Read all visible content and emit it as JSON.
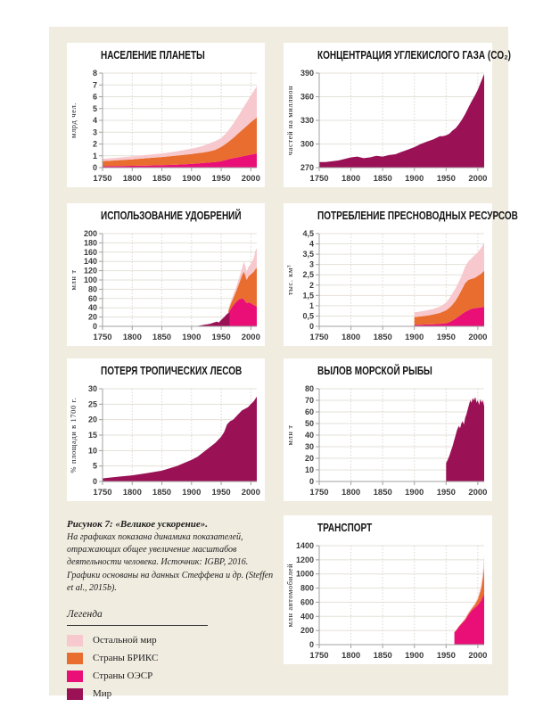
{
  "palette": {
    "rest": "#f7c8ce",
    "brics": "#e96d2f",
    "oecd": "#e90f77",
    "world": "#9b1156"
  },
  "figure_bg": "#f0ece0",
  "caption": {
    "title": "Рисунок 7: «Великое ускорение».",
    "body": "На графиках показана динамика показателей, отражающих общее увеличение масштабов деятельности человека. Источник: IGBP, 2016. Графики основаны на данных Стеффена и др. (Steffen et al., 2015b)."
  },
  "legend": {
    "title": "Легенда",
    "items": [
      {
        "label": "Остальной мир",
        "color_key": "rest"
      },
      {
        "label": "Страны БРИКС",
        "color_key": "brics"
      },
      {
        "label": "Страны ОЭСР",
        "color_key": "oecd"
      },
      {
        "label": "Мир",
        "color_key": "world"
      }
    ]
  },
  "chart_data": [
    {
      "type": "area",
      "stacked": true,
      "title": "НАСЕЛЕНИЕ ПЛАНЕТЫ",
      "ylabel": "млрд чел.",
      "xlim": [
        1750,
        2010
      ],
      "ylim": [
        0,
        8
      ],
      "xticks": [
        1750,
        1800,
        1850,
        1900,
        1950,
        2000
      ],
      "yticks": [
        0,
        1,
        2,
        3,
        4,
        5,
        6,
        7,
        8
      ],
      "series": [
        {
          "name": "Страны ОЭСР",
          "color_key": "oecd",
          "stack": true,
          "years": [
            1750,
            1775,
            1800,
            1825,
            1850,
            1875,
            1900,
            1910,
            1920,
            1930,
            1940,
            1950,
            1960,
            1970,
            1980,
            1990,
            2000,
            2010
          ],
          "values": [
            0.12,
            0.13,
            0.15,
            0.17,
            0.2,
            0.25,
            0.31,
            0.35,
            0.39,
            0.44,
            0.47,
            0.55,
            0.68,
            0.8,
            0.9,
            1.0,
            1.1,
            1.2
          ]
        },
        {
          "name": "Страны БРИКС",
          "color_key": "brics",
          "stack": true,
          "years": [
            1750,
            1775,
            1800,
            1825,
            1850,
            1875,
            1900,
            1910,
            1920,
            1930,
            1940,
            1950,
            1960,
            1970,
            1980,
            1990,
            2000,
            2010
          ],
          "values": [
            0.43,
            0.49,
            0.55,
            0.63,
            0.7,
            0.77,
            0.84,
            0.87,
            0.89,
            0.94,
            1.03,
            1.2,
            1.42,
            1.7,
            2.05,
            2.4,
            2.75,
            3.05
          ]
        },
        {
          "name": "Остальной мир",
          "color_key": "rest",
          "stack": true,
          "years": [
            1750,
            1775,
            1800,
            1825,
            1850,
            1875,
            1900,
            1910,
            1920,
            1930,
            1940,
            1950,
            1960,
            1970,
            1980,
            1990,
            2000,
            2010
          ],
          "values": [
            0.2,
            0.22,
            0.25,
            0.27,
            0.3,
            0.36,
            0.45,
            0.5,
            0.57,
            0.67,
            0.75,
            0.75,
            0.9,
            1.2,
            1.5,
            1.9,
            2.25,
            2.65
          ]
        }
      ]
    },
    {
      "type": "area",
      "stacked": false,
      "title": "КОНЦЕНТРАЦИЯ УГЛЕКИСЛОГО ГАЗА  (CO₂)",
      "ylabel": "частей на миллион",
      "xlim": [
        1750,
        2010
      ],
      "ylim": [
        270,
        390
      ],
      "xticks": [
        1750,
        1800,
        1850,
        1900,
        1950,
        2000
      ],
      "yticks": [
        270,
        300,
        330,
        360,
        390
      ],
      "series": [
        {
          "name": "Мир",
          "color_key": "world",
          "stack": false,
          "years": [
            1750,
            1760,
            1770,
            1780,
            1790,
            1800,
            1810,
            1820,
            1830,
            1840,
            1850,
            1860,
            1870,
            1880,
            1890,
            1900,
            1910,
            1920,
            1930,
            1940,
            1945,
            1950,
            1955,
            1960,
            1965,
            1970,
            1975,
            1980,
            1985,
            1990,
            1995,
            2000,
            2005,
            2010
          ],
          "values": [
            277,
            277,
            278,
            279,
            281,
            283,
            284,
            282,
            283,
            285,
            284,
            286,
            287,
            290,
            293,
            296,
            300,
            303,
            306,
            310,
            310,
            311,
            313,
            317,
            320,
            325,
            331,
            338,
            346,
            354,
            361,
            369,
            379,
            389
          ]
        }
      ]
    },
    {
      "type": "area",
      "stacked": true,
      "title": "ИСПОЛЬЗОВАНИЕ УДОБРЕНИЙ",
      "ylabel": "млн т",
      "xlim": [
        1750,
        2010
      ],
      "ylim": [
        0,
        200
      ],
      "xticks": [
        1750,
        1800,
        1850,
        1900,
        1950,
        2000
      ],
      "yticks": [
        0,
        20,
        40,
        60,
        80,
        100,
        120,
        140,
        160,
        180,
        200
      ],
      "series": [
        {
          "name": "Страны ОЭСР",
          "color_key": "oecd",
          "stack": true,
          "years": [
            1962,
            1965,
            1970,
            1975,
            1980,
            1985,
            1988,
            1990,
            1993,
            1996,
            2000,
            2005,
            2008,
            2010
          ],
          "values": [
            28,
            35,
            45,
            52,
            58,
            60,
            58,
            55,
            50,
            52,
            50,
            46,
            44,
            42
          ]
        },
        {
          "name": "Страны БРИКС",
          "color_key": "brics",
          "stack": true,
          "years": [
            1962,
            1965,
            1970,
            1975,
            1980,
            1985,
            1988,
            1990,
            1993,
            1996,
            2000,
            2005,
            2008,
            2010
          ],
          "values": [
            5,
            10,
            15,
            23,
            34,
            50,
            60,
            57,
            50,
            56,
            62,
            72,
            80,
            84
          ]
        },
        {
          "name": "Остальной мир",
          "color_key": "rest",
          "stack": true,
          "years": [
            1962,
            1965,
            1970,
            1975,
            1980,
            1985,
            1988,
            1990,
            1993,
            1996,
            2000,
            2005,
            2008,
            2010
          ],
          "values": [
            3,
            5,
            7,
            9,
            11,
            15,
            22,
            21,
            18,
            20,
            23,
            30,
            41,
            42
          ]
        },
        {
          "name": "Мир",
          "color_key": "world",
          "stack": false,
          "years": [
            1900,
            1905,
            1910,
            1915,
            1920,
            1925,
            1930,
            1935,
            1940,
            1943,
            1946,
            1950,
            1955,
            1960,
            1964
          ],
          "values": [
            0,
            0.5,
            1,
            2,
            3,
            4,
            5,
            7,
            9,
            10,
            8,
            14,
            20,
            27,
            30
          ]
        }
      ]
    },
    {
      "type": "area",
      "stacked": true,
      "title": "ПОТРЕБЛЕНИЕ ПРЕСНОВОДНЫХ РЕСУРСОВ",
      "ylabel": "тыс. км³",
      "xlim": [
        1750,
        2010
      ],
      "ylim": [
        0,
        4.5
      ],
      "xticks": [
        1750,
        1800,
        1850,
        1900,
        1950,
        2000
      ],
      "yticks": [
        0,
        0.5,
        1,
        1.5,
        2,
        2.5,
        3,
        3.5,
        4,
        4.5
      ],
      "ytick_labels": [
        "0",
        "0,5",
        "1",
        "1,5",
        "2",
        "2,5",
        "3",
        "3,5",
        "4",
        "4,5"
      ],
      "series": [
        {
          "name": "Страны ОЭСР",
          "color_key": "oecd",
          "stack": true,
          "years": [
            1900,
            1910,
            1920,
            1930,
            1940,
            1950,
            1955,
            1960,
            1965,
            1970,
            1975,
            1980,
            1985,
            1990,
            1995,
            2000,
            2005,
            2010
          ],
          "values": [
            0.07,
            0.08,
            0.09,
            0.1,
            0.12,
            0.15,
            0.2,
            0.28,
            0.38,
            0.48,
            0.6,
            0.7,
            0.78,
            0.85,
            0.88,
            0.9,
            0.92,
            0.95
          ]
        },
        {
          "name": "Страны БРИКС",
          "color_key": "brics",
          "stack": true,
          "years": [
            1900,
            1910,
            1920,
            1930,
            1940,
            1950,
            1955,
            1960,
            1965,
            1970,
            1975,
            1980,
            1985,
            1990,
            1995,
            2000,
            2005,
            2010
          ],
          "values": [
            0.38,
            0.4,
            0.43,
            0.48,
            0.53,
            0.63,
            0.7,
            0.77,
            0.87,
            1.02,
            1.2,
            1.4,
            1.47,
            1.45,
            1.47,
            1.55,
            1.63,
            1.75
          ]
        },
        {
          "name": "Остальной мир",
          "color_key": "rest",
          "stack": true,
          "years": [
            1900,
            1910,
            1920,
            1930,
            1940,
            1950,
            1955,
            1960,
            1965,
            1970,
            1975,
            1980,
            1985,
            1990,
            1995,
            2000,
            2005,
            2010
          ],
          "values": [
            0.23,
            0.24,
            0.26,
            0.27,
            0.3,
            0.37,
            0.45,
            0.55,
            0.6,
            0.65,
            0.7,
            0.8,
            0.9,
            1.0,
            1.1,
            1.15,
            1.25,
            1.35
          ]
        }
      ]
    },
    {
      "type": "area",
      "stacked": false,
      "title": "ПОТЕРЯ ТРОПИЧЕСКИХ ЛЕСОВ",
      "ylabel": "% площади в 1700 г.",
      "xlim": [
        1750,
        2010
      ],
      "ylim": [
        0,
        30
      ],
      "xticks": [
        1750,
        1800,
        1850,
        1900,
        1950,
        2000
      ],
      "yticks": [
        0,
        5,
        10,
        15,
        20,
        25,
        30
      ],
      "series": [
        {
          "name": "Мир",
          "color_key": "world",
          "stack": false,
          "years": [
            1750,
            1775,
            1800,
            1825,
            1850,
            1875,
            1900,
            1910,
            1920,
            1930,
            1940,
            1950,
            1955,
            1960,
            1965,
            1970,
            1975,
            1980,
            1985,
            1990,
            1995,
            2000,
            2005,
            2010
          ],
          "values": [
            1,
            1.5,
            2,
            2.7,
            3.5,
            5,
            7,
            8,
            9.5,
            11,
            12.5,
            14.5,
            16,
            18.5,
            19.5,
            20,
            21,
            22,
            23,
            23.5,
            24,
            25,
            26,
            27.5
          ]
        }
      ]
    },
    {
      "type": "area",
      "stacked": false,
      "title": "ВЫЛОВ МОРСКОЙ РЫБЫ",
      "ylabel": "млн т",
      "xlim": [
        1750,
        2010
      ],
      "ylim": [
        0,
        80
      ],
      "xticks": [
        1750,
        1800,
        1850,
        1900,
        1950,
        2000
      ],
      "yticks": [
        0,
        10,
        20,
        30,
        40,
        50,
        60,
        70,
        80
      ],
      "series": [
        {
          "name": "Мир",
          "color_key": "world",
          "stack": false,
          "years": [
            1950,
            1952,
            1955,
            1958,
            1960,
            1962,
            1965,
            1967,
            1970,
            1972,
            1974,
            1976,
            1978,
            1980,
            1982,
            1984,
            1986,
            1988,
            1990,
            1992,
            1994,
            1996,
            1998,
            2000,
            2002,
            2004,
            2006,
            2008,
            2010
          ],
          "values": [
            16,
            18,
            22,
            27,
            30,
            34,
            40,
            44,
            48,
            46,
            50,
            52,
            49,
            55,
            58,
            62,
            66,
            70,
            68,
            72,
            70,
            73,
            68,
            70,
            66,
            71,
            68,
            70,
            65
          ]
        }
      ]
    },
    {
      "type": "area",
      "stacked": true,
      "title": "ТРАНСПОРТ",
      "ylabel": "млн автомобилей",
      "xlim": [
        1750,
        2010
      ],
      "ylim": [
        0,
        1400
      ],
      "xticks": [
        1750,
        1800,
        1850,
        1900,
        1950,
        2000
      ],
      "yticks": [
        0,
        200,
        400,
        600,
        800,
        1000,
        1200,
        1400
      ],
      "series": [
        {
          "name": "Страны ОЭСР",
          "color_key": "oecd",
          "stack": true,
          "years": [
            1963,
            1965,
            1970,
            1975,
            1980,
            1985,
            1990,
            1995,
            2000,
            2005,
            2008,
            2010
          ],
          "values": [
            175,
            190,
            250,
            300,
            350,
            420,
            480,
            520,
            560,
            620,
            680,
            720
          ]
        },
        {
          "name": "Страны БРИКС",
          "color_key": "brics",
          "stack": true,
          "years": [
            1963,
            1965,
            1970,
            1975,
            1980,
            1985,
            1990,
            1995,
            2000,
            2005,
            2008,
            2010
          ],
          "values": [
            5,
            6,
            8,
            10,
            15,
            20,
            25,
            40,
            80,
            160,
            270,
            380
          ]
        },
        {
          "name": "Остальной мир",
          "color_key": "rest",
          "stack": true,
          "years": [
            1963,
            1965,
            1970,
            1975,
            1980,
            1985,
            1990,
            1995,
            2000,
            2005,
            2008,
            2010
          ],
          "values": [
            2,
            3,
            4,
            6,
            7,
            10,
            15,
            20,
            30,
            50,
            100,
            170
          ]
        }
      ]
    }
  ]
}
